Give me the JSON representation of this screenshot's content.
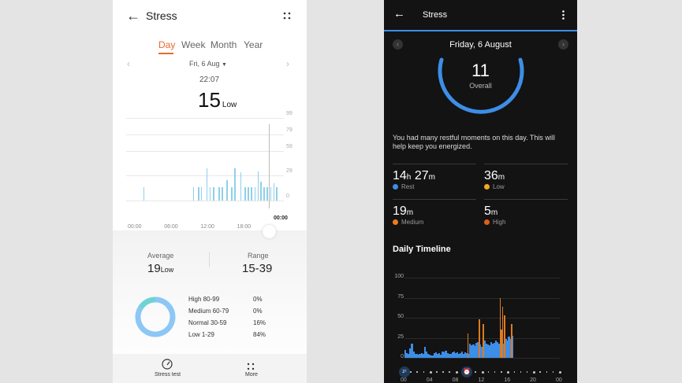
{
  "left": {
    "title": "Stress",
    "tabs": [
      "Day",
      "Week",
      "Month",
      "Year"
    ],
    "active_tab": "Day",
    "date": "Fri, 6 Aug",
    "time": "22:07",
    "value": "15",
    "value_level": "Low",
    "chart": {
      "y_ticks": [
        "99",
        "79",
        "59",
        "29",
        "0"
      ],
      "x_ticks": [
        "00:00",
        "06:00",
        "12:00",
        "18:00"
      ],
      "end_label": "00:00",
      "bars": [
        [
          1.4,
          15
        ],
        [
          9.6,
          15
        ],
        [
          10.4,
          15
        ],
        [
          10.9,
          15
        ],
        [
          11.8,
          38
        ],
        [
          12.3,
          15
        ],
        [
          12.9,
          15
        ],
        [
          13.8,
          15
        ],
        [
          14.3,
          15
        ],
        [
          15.1,
          24
        ],
        [
          15.9,
          15
        ],
        [
          16.4,
          38
        ],
        [
          17.4,
          33
        ],
        [
          18.1,
          15
        ],
        [
          18.6,
          15
        ],
        [
          19.1,
          15
        ],
        [
          19.7,
          15
        ],
        [
          20.2,
          34
        ],
        [
          20.7,
          22
        ],
        [
          21.2,
          15
        ],
        [
          21.7,
          15
        ],
        [
          22.3,
          15
        ],
        [
          22.8,
          20
        ],
        [
          23.3,
          15
        ]
      ],
      "cursor_hour": 22.1,
      "color": "#8fd0ea"
    },
    "average_label": "Average",
    "average": "19",
    "average_level": "Low",
    "range_label": "Range",
    "range": "15-39",
    "distribution": [
      {
        "label": "High 80-99",
        "pct": "0%",
        "color": "#f0924a",
        "value": 0
      },
      {
        "label": "Medium 60-79",
        "pct": "0%",
        "color": "#f5c342",
        "value": 0
      },
      {
        "label": "Normal 30-59",
        "pct": "16%",
        "color": "#6fd3d3",
        "value": 16
      },
      {
        "label": "Low 1-29",
        "pct": "84%",
        "color": "#8cc7f5",
        "value": 84
      }
    ],
    "nav": {
      "stress_test": "Stress test",
      "more": "More"
    },
    "accent": "#e8692c"
  },
  "right": {
    "title": "Stress",
    "date": "Friday, 6 August",
    "overall": "11",
    "overall_label": "Overall",
    "message": "You had many restful moments on this day. This will help keep you energized.",
    "stats": [
      {
        "value": "14",
        "unit": "h",
        "value2": "27",
        "unit2": "m",
        "label": "Rest",
        "color": "#3d8ee6"
      },
      {
        "value": "36",
        "unit": "m",
        "label": "Low",
        "color": "#f5a623"
      },
      {
        "value": "19",
        "unit": "m",
        "label": "Medium",
        "color": "#f07b1e"
      },
      {
        "value": "5",
        "unit": "m",
        "label": "High",
        "color": "#e0601a"
      }
    ],
    "timeline_title": "Daily Timeline",
    "chart": {
      "y_ticks": [
        "100",
        "75",
        "50",
        "25",
        "0"
      ],
      "x_ticks": [
        "00",
        "04",
        "08",
        "12",
        "16",
        "20",
        "00"
      ],
      "step_hours": 0.25,
      "values": [
        10,
        6,
        5,
        12,
        18,
        8,
        5,
        5,
        4,
        5,
        6,
        5,
        14,
        8,
        5,
        4,
        3,
        3,
        6,
        7,
        5,
        6,
        4,
        8,
        7,
        9,
        6,
        5,
        5,
        7,
        8,
        6,
        7,
        5,
        6,
        8,
        5,
        7,
        6,
        5,
        18,
        16,
        17,
        15,
        19,
        20,
        17,
        14,
        16,
        22,
        18,
        17,
        16,
        20,
        18,
        19,
        22,
        20,
        18,
        17,
        20,
        18,
        24,
        22,
        26,
        24,
        27
      ],
      "spikes": [
        [
          9.7,
          30
        ],
        [
          11.5,
          48
        ],
        [
          12.1,
          42
        ],
        [
          14.7,
          75
        ],
        [
          14.9,
          35
        ],
        [
          15.1,
          64
        ],
        [
          15.4,
          53
        ],
        [
          16.5,
          42
        ]
      ],
      "rest_color": "#3d8ee6",
      "stress_color": "#e07a20"
    },
    "accent": "#3d8ee6"
  }
}
